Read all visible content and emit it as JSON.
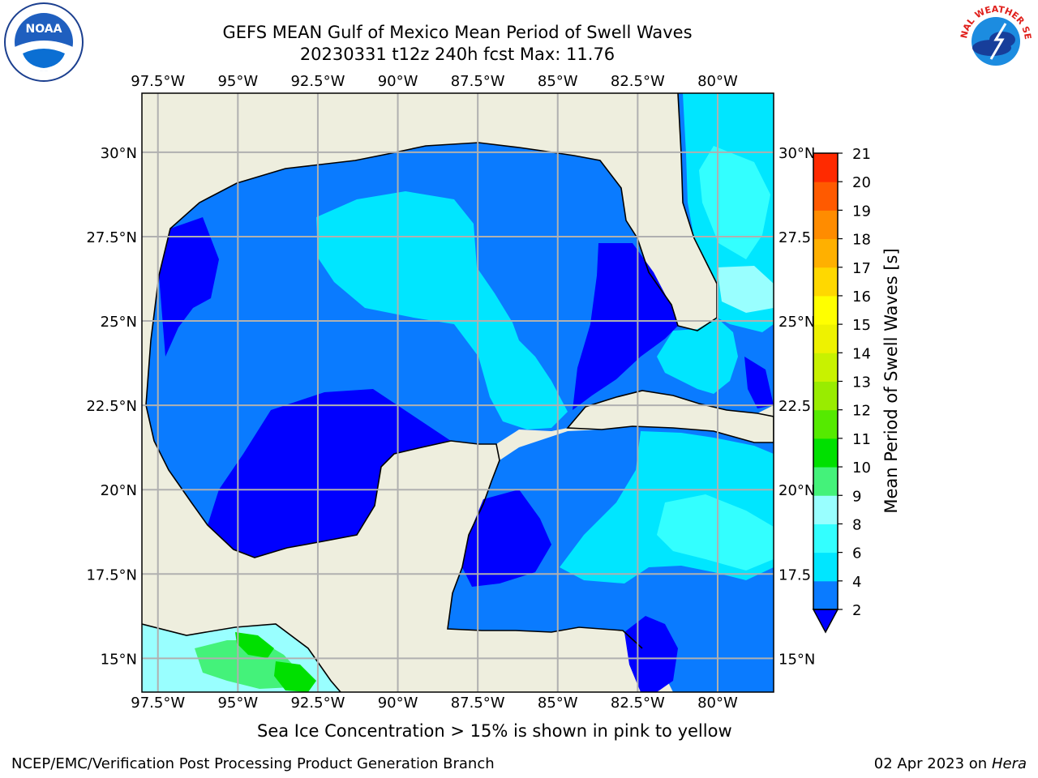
{
  "title": {
    "line1": "GEFS MEAN Gulf of Mexico Mean Period of Swell Waves",
    "line2": "20230331 t12z 240h fcst   Max: 11.76"
  },
  "map": {
    "lon_labels": [
      "97.5°W",
      "95°W",
      "92.5°W",
      "90°W",
      "87.5°W",
      "85°W",
      "82.5°W",
      "80°W"
    ],
    "lat_labels_left": [
      "30°N",
      "27.5°N",
      "25°N",
      "22.5°N",
      "20°N",
      "17.5°N",
      "15°N"
    ],
    "lat_labels_right": [
      "30°N",
      "27.5",
      "25°N",
      "22.5",
      "20°N",
      "17.5",
      "15°N"
    ],
    "extent": {
      "lon_min": -98,
      "lon_max": -78.25,
      "lat_min": 14,
      "lat_max": 31.75
    },
    "land_color": "#eeeede",
    "grid_color": "#b0b0b0"
  },
  "colorbar": {
    "label": "Mean Period of Swell Waves [s]",
    "ticks": [
      "2",
      "4",
      "6",
      "8",
      "9",
      "10",
      "11",
      "12",
      "13",
      "14",
      "15",
      "16",
      "17",
      "18",
      "19",
      "20",
      "21"
    ],
    "colors": [
      "#0a7bff",
      "#00e6ff",
      "#33ffff",
      "#99ffff",
      "#44f27a",
      "#00e000",
      "#55ea00",
      "#99ec00",
      "#c8f200",
      "#eef200",
      "#ffff00",
      "#ffd800",
      "#ffb000",
      "#ff8c00",
      "#ff5a00",
      "#ff2a00"
    ],
    "under_color": "#0000ff"
  },
  "logos": {
    "noaa": {
      "text": "NOAA"
    },
    "nws": {
      "text": "NATIONAL WEATHER SERVICE"
    }
  },
  "footer": {
    "note": "Sea Ice Concentration > 15% is shown in pink to yellow",
    "credit": "NCEP/EMC/Verification Post Processing Product Generation Branch",
    "date": "02 Apr 2023 on ",
    "machine": "Hera"
  }
}
